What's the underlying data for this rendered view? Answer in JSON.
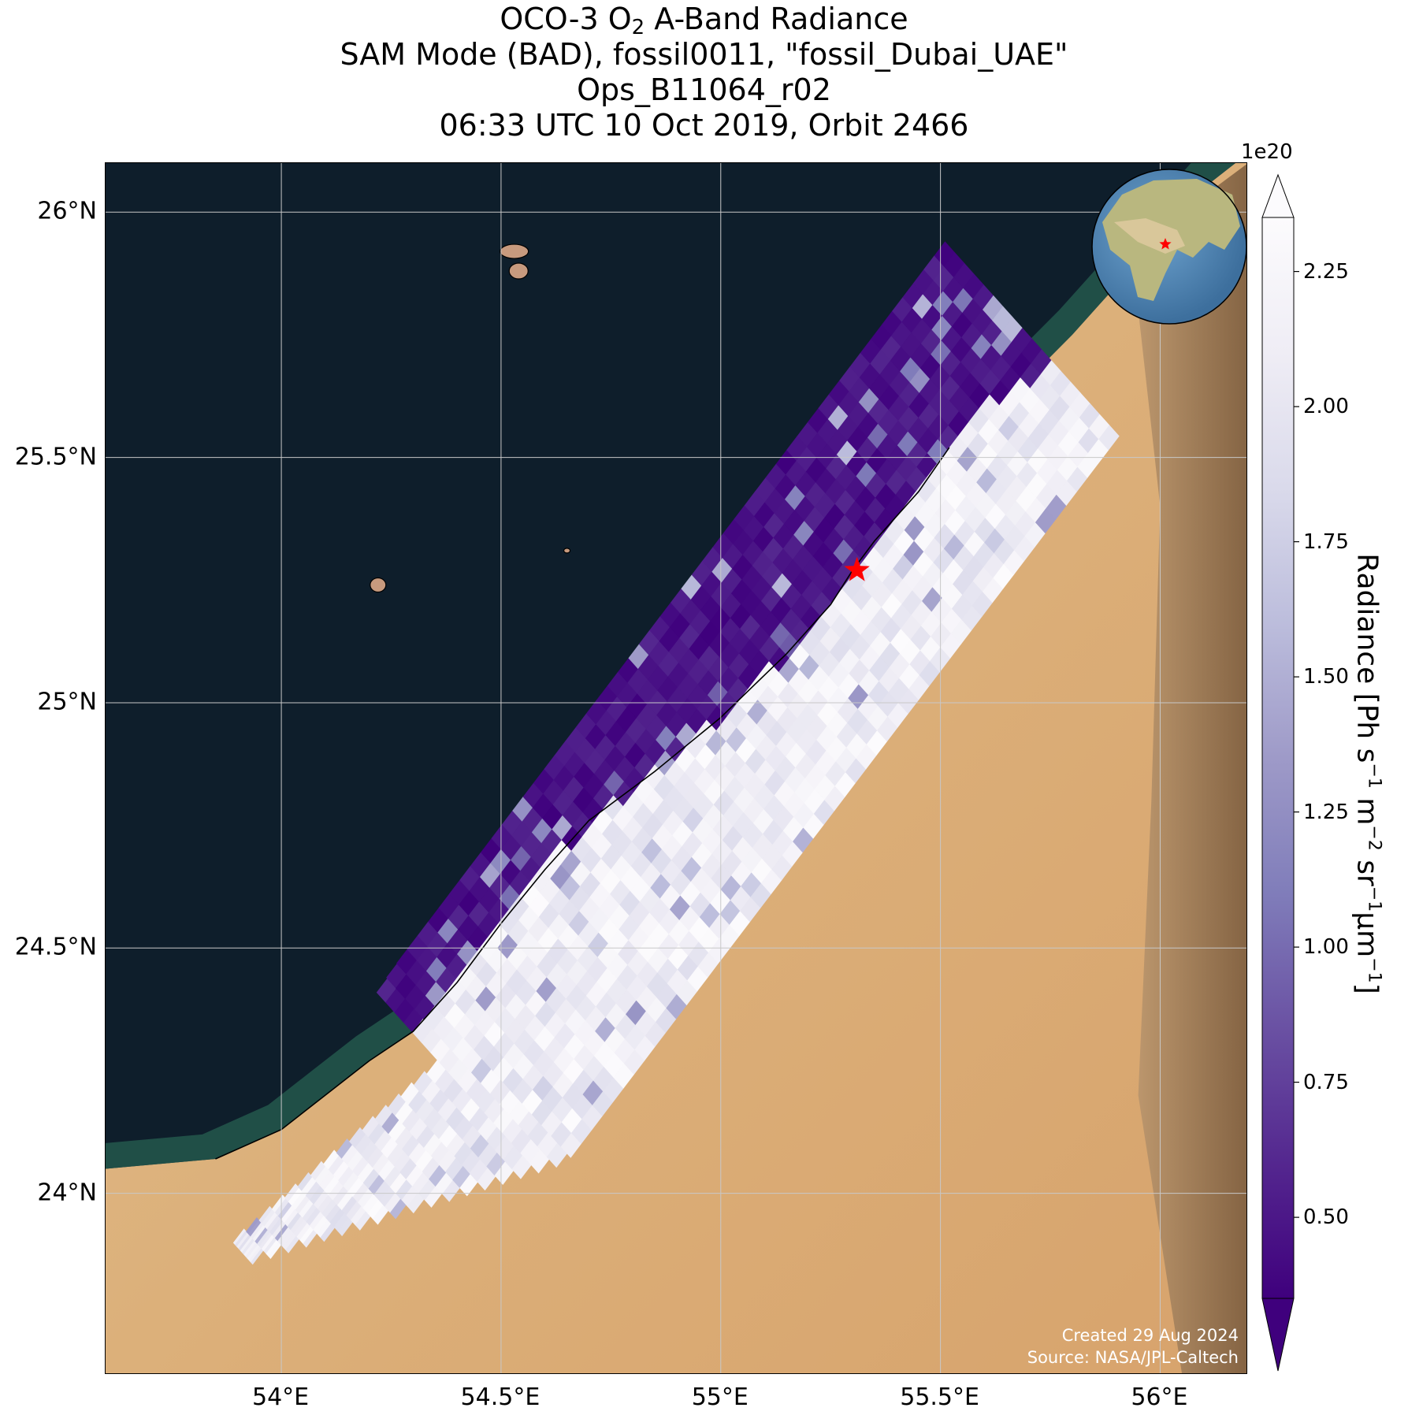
{
  "title": {
    "line1_pre": "OCO-3 O",
    "line1_sub": "2",
    "line1_post": " A-Band Radiance",
    "line2": "SAM Mode (BAD), fossil0011, \"fossil_Dubai_UAE\"",
    "line3": "Ops_B11064_r02",
    "line4": "06:33 UTC 10 Oct 2019, Orbit 2466"
  },
  "map": {
    "extent": {
      "lon_min": 53.6,
      "lon_max": 56.2,
      "lat_min": 23.63,
      "lat_max": 26.1
    },
    "lat_ticks": [
      {
        "value": 26.0,
        "label": "26°N"
      },
      {
        "value": 25.5,
        "label": "25.5°N"
      },
      {
        "value": 25.0,
        "label": "25°N"
      },
      {
        "value": 24.5,
        "label": "24.5°N"
      },
      {
        "value": 24.0,
        "label": "24°N"
      }
    ],
    "lon_ticks": [
      {
        "value": 54.0,
        "label": "54°E"
      },
      {
        "value": 54.5,
        "label": "54.5°E"
      },
      {
        "value": 55.0,
        "label": "55°E"
      },
      {
        "value": 55.5,
        "label": "55.5°E"
      },
      {
        "value": 56.0,
        "label": "56°E"
      }
    ],
    "target": {
      "name": "fossil_Dubai_UAE",
      "lon": 55.31,
      "lat": 25.27
    },
    "colors": {
      "sea": "#0e1e2b",
      "sand": "#dcb483",
      "sand_dark": "#c99660",
      "mountains": "#8d6b4a",
      "shallow_water": "#23584c",
      "gridline": "#c8c8c8",
      "target_star": "#ff0000"
    },
    "credit_line1": "Created 29 Aug 2024",
    "credit_line2": "Source: NASA/JPL-Caltech"
  },
  "colorbar": {
    "label_main": "Radiance [Ph s",
    "label_sup1": "−1",
    "label_m": " m",
    "label_sup2": "−2",
    "label_sr": " sr",
    "label_sup3": "−1",
    "label_um": "µm",
    "label_sup4": "−1",
    "label_end": "]",
    "exponent": "1e20",
    "vmin": 0.35,
    "vmax": 2.35,
    "extend": "both",
    "colormap": "Purples_r",
    "ticks": [
      {
        "value": 0.5,
        "label": "0.50"
      },
      {
        "value": 0.75,
        "label": "0.75"
      },
      {
        "value": 1.0,
        "label": "1.00"
      },
      {
        "value": 1.25,
        "label": "1.25"
      },
      {
        "value": 1.5,
        "label": "1.50"
      },
      {
        "value": 1.75,
        "label": "1.75"
      },
      {
        "value": 2.0,
        "label": "2.00"
      },
      {
        "value": 2.25,
        "label": "2.25"
      }
    ],
    "stops": [
      "#3f007d",
      "#54278f",
      "#6a51a3",
      "#807dba",
      "#9e9ac8",
      "#bcbddc",
      "#dadaeb",
      "#efedf5",
      "#fcfbfd"
    ]
  },
  "inset_globe": {
    "colors": {
      "ocean": "#4e86b8",
      "land": "#b9b77f",
      "desert": "#d9c79a",
      "marker": "#ff0000"
    }
  }
}
